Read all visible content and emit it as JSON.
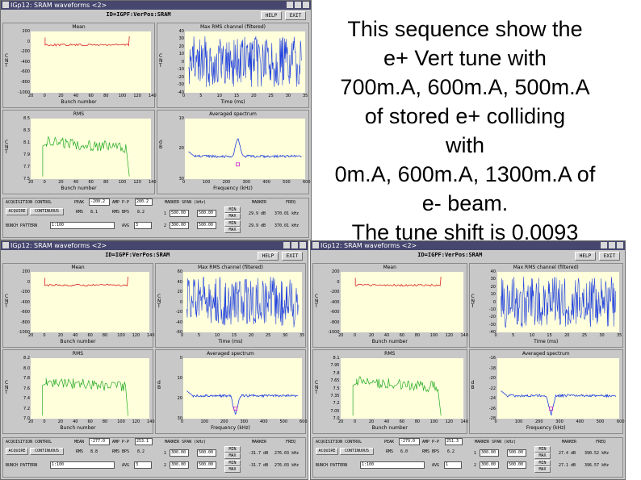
{
  "note": {
    "lines": [
      "This sequence show the",
      "e+ Vert tune with",
      "700m.A, 600m.A, 500m.A",
      "of stored e+ colliding",
      "with",
      "0m.A, 600m.A, 1300m.A of",
      "e- beam.",
      "The tune shift is 0.0093"
    ]
  },
  "colors": {
    "mean": "#dd2222",
    "rms": "#22aa22",
    "spectrum": "#1f3fdd",
    "max_rms": "#1f3fdd",
    "plot_bg": "#ffffdc"
  },
  "windows": [
    {
      "title": "IGp12: SRAM waveforms <2>",
      "id_label": "ID=IGPF:VerPos:SRAM",
      "help": "HELP",
      "exit": "EXIT",
      "panels": {
        "mean": {
          "title": "Mean",
          "ylabel": "CNT",
          "xlabel": "Bunch number",
          "yticks": [
            "200",
            "0",
            "-200",
            "-400",
            "-600",
            "-800",
            "-1000"
          ],
          "xticks": [
            "20",
            "0",
            "20",
            "40",
            "60",
            "80",
            "100",
            "120",
            "140"
          ]
        },
        "max_rms": {
          "title": "Max RMS channel (filtered)",
          "ylabel": "CNT",
          "xlabel": "Time (ms)",
          "yticks": [
            "40",
            "30",
            "20",
            "10",
            "0",
            "-10",
            "-20",
            "-30",
            "-40"
          ],
          "xticks": [
            "0",
            "5",
            "10",
            "15",
            "20",
            "25",
            "30",
            "35"
          ]
        },
        "rms": {
          "title": "RMS",
          "ylabel": "CNT",
          "xlabel": "Bunch number",
          "yticks": [
            "8.5",
            "8.3",
            "8.1",
            "7.9",
            "7.7",
            "7.5"
          ],
          "xticks": [
            "20",
            "0",
            "20",
            "40",
            "60",
            "80",
            "100",
            "120",
            "140"
          ]
        },
        "spectrum": {
          "title": "Averaged spectrum",
          "ylabel": "dB",
          "xlabel": "Frequency (kHz)",
          "yticks": [
            "10",
            "20",
            "30"
          ],
          "xticks": [
            "0",
            "100",
            "200",
            "300",
            "400",
            "500",
            "600"
          ]
        }
      },
      "controls": {
        "acq": "ACQUISITION CONTROL",
        "acquire": "ACQUIRE",
        "continuous": "CONTINUOUS",
        "pair1_label": "PEAK",
        "pair1_val": "-200.2",
        "pair2_label": "AMP P-P",
        "pair2_val": "200.2",
        "rms_label": "RMS",
        "rms_val": "8.1",
        "rms2_label": "RMS BPS",
        "rms2_val": "8.2",
        "marker_span": "MARKER SPAN (kHz)",
        "marker1": "1",
        "marker2": "2",
        "m1a": "500.00",
        "m1b": "500.00",
        "m2a": "300.00",
        "m2b": "500.00",
        "min": "MIN",
        "max": "MAX",
        "marker": "MARKER",
        "freq": "FREQ",
        "mk1_db": "29.9 dB",
        "mk1_freq": "370.01 kHz",
        "mk2_db": "29.9 dB",
        "mk2_freq": "370.01 kHz",
        "bunch_pattern": "BUNCH PATTERN",
        "bunch_val": "1:100",
        "avg_label": "AVG",
        "avg_val": "3"
      }
    },
    {
      "title": "IGp12: SRAM waveforms <2>",
      "id_label": "ID=IGPF:VerPos:SRAM",
      "help": "HELP",
      "exit": "EXIT",
      "panels": {
        "mean": {
          "title": "Mean",
          "ylabel": "CNT",
          "xlabel": "Bunch number",
          "yticks": [
            "200",
            "0",
            "-200",
            "-400",
            "-600",
            "-800",
            "-1000"
          ],
          "xticks": [
            "20",
            "0",
            "20",
            "40",
            "60",
            "80",
            "100",
            "120",
            "140"
          ]
        },
        "max_rms": {
          "title": "Max RMS channel (filtered)",
          "ylabel": "CNT",
          "xlabel": "Time (ms)",
          "yticks": [
            "60",
            "40",
            "20",
            "0",
            "-20",
            "-40",
            "-60"
          ],
          "xticks": [
            "0",
            "5",
            "10",
            "15",
            "20",
            "25",
            "30",
            "35"
          ]
        },
        "rms": {
          "title": "RMS",
          "ylabel": "CNT",
          "xlabel": "Bunch number",
          "yticks": [
            "8.2",
            "8.0",
            "7.8",
            "7.6",
            "7.4",
            "7.2",
            "7.0"
          ],
          "xticks": [
            "20",
            "0",
            "20",
            "40",
            "60",
            "80",
            "100",
            "120",
            "140"
          ]
        },
        "spectrum": {
          "title": "Averaged spectrum",
          "ylabel": "dB",
          "xlabel": "Frequency (kHz)",
          "yticks": [
            "0",
            "10",
            "20",
            "30"
          ],
          "xticks": [
            "0",
            "100",
            "200",
            "300",
            "400",
            "500",
            "600"
          ]
        }
      },
      "controls": {
        "acq": "ACQUISITION CONTROL",
        "acquire": "ACQUIRE",
        "continuous": "CONTINUOUS",
        "pair1_label": "MEAN",
        "pair1_val": "-277.0",
        "pair2_label": "AMP P-P",
        "pair2_val": "253.1",
        "rms_label": "RMS",
        "rms_val": "8.8",
        "rms2_label": "RMS BPS",
        "rms2_val": "8.2",
        "marker_span": "MARKER SPAN (kHz)",
        "marker1": "1",
        "marker2": "2",
        "m1a": "300.00",
        "m1b": "500.00",
        "m2a": "300.00",
        "m2b": "500.00",
        "min": "MIN",
        "max": "MAX",
        "marker": "MARKER",
        "freq": "FREQ",
        "mk1_db": "-31.7 dB",
        "mk1_freq": "276.03 kHz",
        "mk2_db": "-31.7 dB",
        "mk2_freq": "276.03 kHz",
        "bunch_pattern": "BUNCH PATTERN",
        "bunch_val": "1:100",
        "avg_label": "AVG",
        "avg_val": "3"
      }
    },
    {
      "title": "IGp12: SRAM waveforms <2>",
      "id_label": "ID=IGPF:VerPos:SRAM",
      "help": "HELP",
      "exit": "EXIT",
      "panels": {
        "mean": {
          "title": "Mean",
          "ylabel": "CNT",
          "xlabel": "Bunch number",
          "yticks": [
            "200",
            "0",
            "-200",
            "-400",
            "-600",
            "-800",
            "-1000"
          ],
          "xticks": [
            "20",
            "0",
            "20",
            "40",
            "60",
            "80",
            "100",
            "120",
            "140"
          ]
        },
        "max_rms": {
          "title": "Max RMS channel (filtered)",
          "ylabel": "CNT",
          "xlabel": "Time (ms)",
          "yticks": [
            "40",
            "30",
            "20",
            "10",
            "0",
            "-10",
            "-20",
            "-30",
            "-40"
          ],
          "xticks": [
            "0",
            "5",
            "10",
            "15",
            "20",
            "25",
            "30",
            "35"
          ]
        },
        "rms": {
          "title": "RMS",
          "ylabel": "CNT",
          "xlabel": "Bunch number",
          "yticks": [
            "8.1",
            "7.95",
            "7.8",
            "7.65",
            "7.5",
            "7.35",
            "7.2",
            "7.05",
            "7.0"
          ],
          "xticks": [
            "20",
            "0",
            "20",
            "40",
            "60",
            "80",
            "100",
            "120",
            "140"
          ]
        },
        "spectrum": {
          "title": "Averaged spectrum",
          "ylabel": "dB",
          "xlabel": "Frequency (kHz)",
          "yticks": [
            "-16",
            "-18",
            "-20",
            "-22",
            "-24",
            "-26",
            "-28"
          ],
          "xticks": [
            "0",
            "100",
            "200",
            "300",
            "400",
            "500",
            "600"
          ]
        }
      },
      "controls": {
        "acq": "ACQUISITION CONTROL",
        "acquire": "ACQUIRE",
        "continuous": "CONTINUOUS",
        "pair1_label": "PEAK",
        "pair1_val": "-279.0",
        "pair2_label": "AMP P-P",
        "pair2_val": "251.3",
        "rms_label": "RMS",
        "rms_val": "6.0",
        "rms2_label": "RMS BPS",
        "rms2_val": "6.2",
        "marker_span": "MARKER SPAN (kHz)",
        "marker1": "1",
        "marker2": "2",
        "m1a": "300.00",
        "m1b": "500.00",
        "m2a": "300.00",
        "m2b": "500.00",
        "min": "MIN",
        "max": "MAX",
        "marker": "MARKER",
        "freq": "FREQ",
        "mk1_db": "27.4 dB",
        "mk1_freq": "390.52 kHz",
        "mk2_db": "27.1 dB",
        "mk2_freq": "396.57 kHz",
        "bunch_pattern": "BUNCH PATTERN",
        "bunch_val": "1:100",
        "avg_label": "AVG",
        "avg_val": "1"
      }
    }
  ]
}
